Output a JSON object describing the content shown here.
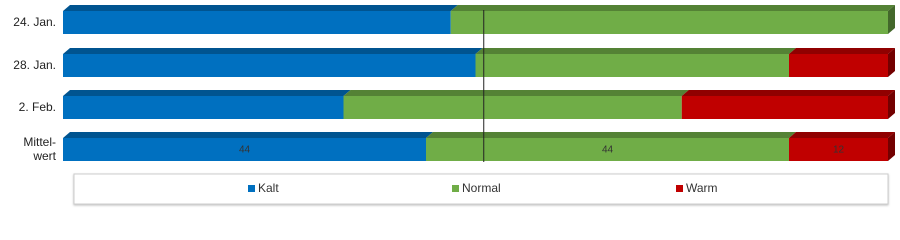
{
  "chart_data": {
    "type": "stacked-bar-3d",
    "categories": [
      "24. Jan.",
      "28. Jan.",
      "2. Feb.",
      "Mittel-\nwert"
    ],
    "series": [
      {
        "name": "Kalt",
        "color": "#0070c0",
        "values": [
          47,
          50,
          34,
          44
        ]
      },
      {
        "name": "Normal",
        "color": "#70ad47",
        "values": [
          53,
          38,
          41,
          44
        ]
      },
      {
        "name": "Warm",
        "color": "#c00000",
        "values": [
          0,
          12,
          25,
          12
        ]
      }
    ],
    "data_labels": [
      false,
      false,
      false,
      true
    ],
    "reference_line": 51,
    "xlim": [
      0,
      100
    ],
    "legend": "bottom"
  }
}
